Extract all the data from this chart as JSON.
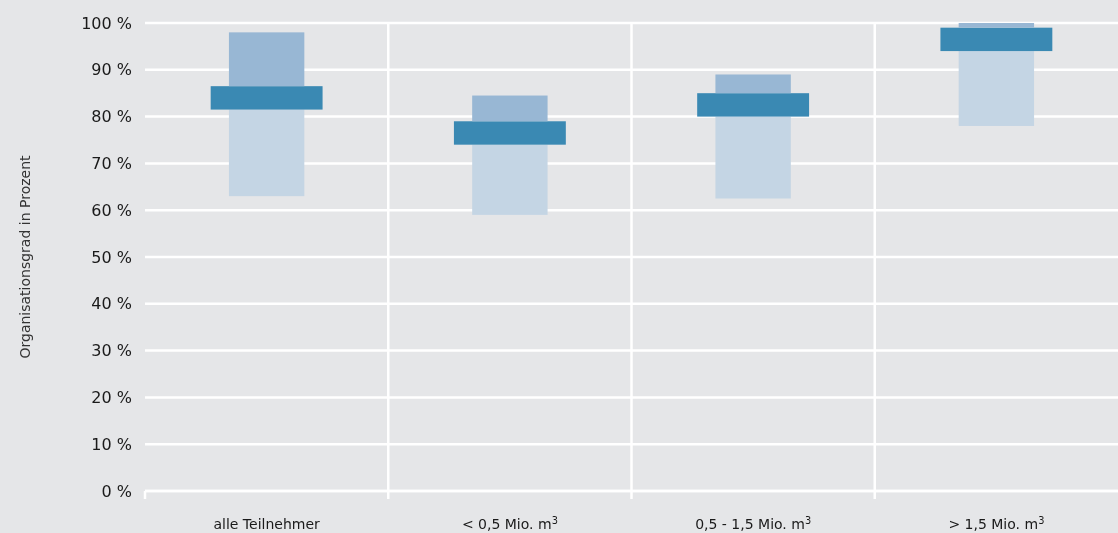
{
  "chart_data": {
    "type": "bar",
    "ylabel": "Organisationsgrad in Prozent",
    "categories": [
      "alle Teilnehmer",
      "< 0,5 Mio. m$^{3}$",
      "0,5 - 1,5 Mio. m$^{3}$",
      "> 1,5 Mio. m$^{3}$"
    ],
    "series": [
      {
        "color": "#c4d5e4",
        "base": [
          63,
          59,
          62.5,
          78
        ],
        "values": [
          18.5,
          15,
          17.5,
          16
        ]
      },
      {
        "color": "#3a89b3",
        "base": [
          81.5,
          74,
          80,
          94
        ],
        "values": [
          5,
          5,
          5,
          5
        ]
      },
      {
        "color": "#98b7d4",
        "base": [
          86.5,
          79,
          85,
          99
        ],
        "values": [
          11.5,
          5.5,
          4,
          1
        ]
      }
    ],
    "ylim": [
      0,
      100
    ],
    "yticks": [
      {
        "value": 0,
        "label": "0 %"
      },
      {
        "value": 10,
        "label": "10 %"
      },
      {
        "value": 20,
        "label": "20 %"
      },
      {
        "value": 30,
        "label": "30 %"
      },
      {
        "value": 40,
        "label": "40 %"
      },
      {
        "value": 50,
        "label": "50 %"
      },
      {
        "value": 60,
        "label": "60 %"
      },
      {
        "value": 70,
        "label": "70 %"
      },
      {
        "value": 80,
        "label": "80 %"
      },
      {
        "value": 90,
        "label": "90 %"
      },
      {
        "value": 100,
        "label": "100 %"
      }
    ],
    "grid": true
  }
}
